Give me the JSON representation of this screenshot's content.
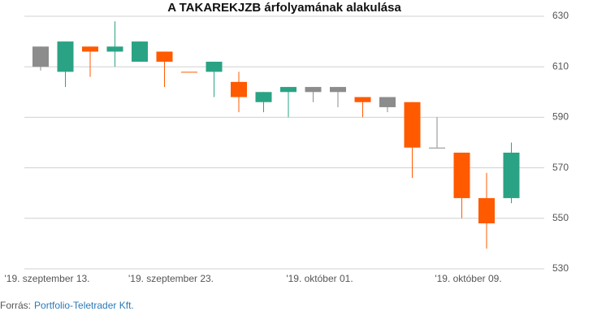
{
  "chart_data": {
    "type": "candlestick",
    "title": "A TAKAREKJZB árfolyamának alakulása",
    "categories": [
      "'19. szeptember 13.",
      null,
      null,
      null,
      null,
      "'19. szeptember 23.",
      null,
      null,
      null,
      null,
      null,
      "'19. október 01.",
      null,
      null,
      null,
      null,
      null,
      "'19. október 09.",
      null,
      null
    ],
    "open": [
      618,
      608,
      618,
      616,
      612,
      616,
      608,
      608,
      604,
      596,
      600,
      602,
      602,
      598,
      598,
      596,
      578,
      576,
      558,
      558
    ],
    "high": [
      618,
      620,
      618,
      628,
      620,
      616,
      608,
      612,
      608,
      600,
      602,
      602,
      602,
      598,
      598,
      596,
      590,
      576,
      568,
      580
    ],
    "low": [
      608.5,
      602,
      606,
      610,
      612,
      602,
      608,
      598,
      592,
      592,
      590,
      596,
      594,
      590,
      592,
      566,
      578,
      550,
      538,
      556
    ],
    "close": [
      610,
      620,
      616,
      618,
      620,
      612,
      608,
      612,
      598,
      600,
      602,
      600,
      600,
      596,
      594,
      578,
      578,
      558,
      548,
      576
    ],
    "colors": [
      "#8c8c8c",
      "#2aa384",
      "#ff5a00",
      "#2aa384",
      "#2aa384",
      "#ff5a00",
      "#ff5a00",
      "#2aa384",
      "#ff5a00",
      "#2aa384",
      "#2aa384",
      "#8c8c8c",
      "#8c8c8c",
      "#ff5a00",
      "#8c8c8c",
      "#ff5a00",
      "#8c8c8c",
      "#ff5a00",
      "#ff5a00",
      "#2aa384"
    ],
    "ylim": [
      530,
      630
    ],
    "yticks": [
      530,
      550,
      570,
      590,
      610,
      630
    ],
    "grid": true
  },
  "source": {
    "label": "Forrás:",
    "text": "Portfolio-Teletrader Kft."
  }
}
